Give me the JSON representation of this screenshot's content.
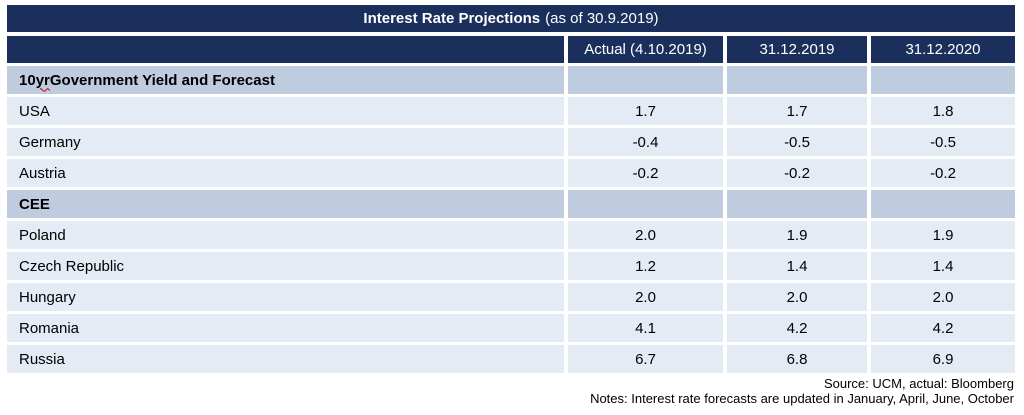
{
  "title": {
    "main": "Interest Rate Projections",
    "suffix": "(as of 30.9.2019)"
  },
  "header": {
    "columns": [
      "Actual (4.10.2019)",
      "31.12.2019",
      "31.12.2020"
    ]
  },
  "rows": [
    {
      "type": "section",
      "label_prefix": "10 ",
      "label_misspelled": "yr",
      "label_suffix": " Government Yield and Forecast",
      "values": [
        "",
        "",
        ""
      ]
    },
    {
      "type": "data",
      "label": "USA",
      "values": [
        "1.7",
        "1.7",
        "1.8"
      ]
    },
    {
      "type": "data",
      "label": "Germany",
      "values": [
        "-0.4",
        "-0.5",
        "-0.5"
      ]
    },
    {
      "type": "data",
      "label": "Austria",
      "values": [
        "-0.2",
        "-0.2",
        "-0.2"
      ]
    },
    {
      "type": "section",
      "label": "CEE",
      "values": [
        "",
        "",
        ""
      ]
    },
    {
      "type": "data",
      "label": "Poland",
      "values": [
        "2.0",
        "1.9",
        "1.9"
      ]
    },
    {
      "type": "data",
      "label": "Czech Republic",
      "values": [
        "1.2",
        "1.4",
        "1.4"
      ]
    },
    {
      "type": "data",
      "label": "Hungary",
      "values": [
        "2.0",
        "2.0",
        "2.0"
      ]
    },
    {
      "type": "data",
      "label": "Romania",
      "values": [
        "4.1",
        "4.2",
        "4.2"
      ]
    },
    {
      "type": "data",
      "label": "Russia",
      "values": [
        "6.7",
        "6.8",
        "6.9"
      ]
    }
  ],
  "footer": {
    "source": "Source: UCM, actual: Bloomberg",
    "notes": "Notes: Interest rate forecasts are updated in January, April, June, October"
  },
  "colors": {
    "navy": "#1B2F5C",
    "section_row_bg": "#BFCCDF",
    "data_row_bg": "#E5EBF4",
    "squiggle_red": "#C00000"
  },
  "chart_data": {
    "type": "table",
    "title": "Interest Rate Projections (as of 30.9.2019)",
    "columns": [
      "",
      "Actual (4.10.2019)",
      "31.12.2019",
      "31.12.2020"
    ],
    "sections": [
      {
        "name": "10 yr Government Yield and Forecast",
        "rows": [
          [
            "USA",
            1.7,
            1.7,
            1.8
          ],
          [
            "Germany",
            -0.4,
            -0.5,
            -0.5
          ],
          [
            "Austria",
            -0.2,
            -0.2,
            -0.2
          ]
        ]
      },
      {
        "name": "CEE",
        "rows": [
          [
            "Poland",
            2.0,
            1.9,
            1.9
          ],
          [
            "Czech Republic",
            1.2,
            1.4,
            1.4
          ],
          [
            "Hungary",
            2.0,
            2.0,
            2.0
          ],
          [
            "Romania",
            4.1,
            4.2,
            4.2
          ],
          [
            "Russia",
            6.7,
            6.8,
            6.9
          ]
        ]
      }
    ],
    "notes": [
      "Source: UCM, actual: Bloomberg",
      "Notes: Interest rate forecasts are updated in January, April, June, October"
    ]
  }
}
